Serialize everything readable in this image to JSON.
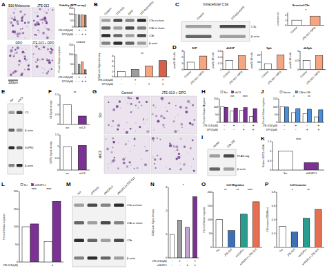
{
  "images": [
    {
      "panel": "A",
      "labels": [
        "B16-Melanoma",
        "JTE-013",
        "DPO",
        "JTE-013 + DPO"
      ],
      "scale_bar": "100μm"
    },
    {
      "panel": "G",
      "labels": [
        "Control",
        "JTE-013 + DPO"
      ],
      "row_labels": [
        "Scr",
        "shC3"
      ]
    }
  ],
  "blots": [
    {
      "panel": "B",
      "lanes": [
        "Control",
        "JTE-013",
        "DPO",
        "JTE-013+DPO"
      ],
      "bands": [
        "C3a-α chain",
        "C3b-α' chain",
        "C3b",
        "β-actin"
      ]
    },
    {
      "panel": "C",
      "title": "Intracellular C3a",
      "lanes": [
        "Control",
        "JTE-013+DPO"
      ],
      "bands": [
        "C3a",
        "β-actin"
      ]
    },
    {
      "panel": "E",
      "lanes": [
        "Scr",
        "shC3"
      ],
      "bands": [
        "C3",
        "β-actin",
        "S1PR1",
        "β-actin"
      ]
    },
    {
      "panel": "I",
      "lanes": [
        "Vector",
        "C3b OE"
      ],
      "bands": [
        "FLAG-tag",
        "β-actin"
      ]
    },
    {
      "panel": "M",
      "lanes": [
        "Scr",
        "JTE-013",
        "shSGPL1",
        "shSGPL1+JTE-013"
      ],
      "bands": [
        "C3a-α chain",
        "C3b-α' chain",
        "C3b",
        "β-actin"
      ]
    }
  ],
  "chart_data": [
    {
      "type": "bar",
      "title": "Viability (MTT assay)",
      "values": [
        100,
        97,
        98,
        95
      ],
      "colors": [
        "#ffffff",
        "#9e9e9e",
        "#f4a582",
        "#d6604d"
      ],
      "ylim": [
        0,
        150
      ],
      "yticks": [
        0,
        50,
        100,
        150
      ],
      "conditions": [
        {
          "label": "JTE-013(1μM)",
          "signs": [
            "-",
            "+",
            "-",
            "+"
          ]
        },
        {
          "label": "DPO(5μM)",
          "signs": [
            "-",
            "-",
            "+",
            "+"
          ]
        }
      ]
    },
    {
      "type": "bar",
      "y_label": "Percent Relative migration",
      "values": [
        100,
        50,
        62,
        22
      ],
      "colors": [
        "#ffffff",
        "#9e9e9e",
        "#f4a582",
        "#d6604d"
      ],
      "ylim": [
        0,
        150
      ],
      "yticks": [
        0,
        50,
        100,
        150
      ],
      "annotations": [
        "****",
        "****"
      ],
      "conditions": [
        {
          "label": "JTE-013(1μM)",
          "signs": [
            "-",
            "+",
            "-",
            "+"
          ]
        },
        {
          "label": "DPO(5μM)",
          "signs": [
            "-",
            "-",
            "+",
            "+"
          ]
        }
      ]
    },
    {
      "type": "bar",
      "y_label": "C3b/β-actin Signal intensity",
      "values": [
        1,
        1.4,
        2.1,
        3.1
      ],
      "colors": [
        "#ffffff",
        "#9e9e9e",
        "#f4a582",
        "#d6604d"
      ],
      "ylim": [
        0,
        4
      ],
      "yticks": [
        0,
        1,
        2,
        3,
        4
      ],
      "annotations": [
        "**"
      ],
      "conditions": [
        {
          "label": "JTE-013(1μM)",
          "signs": [
            "-",
            "+",
            "-",
            "+"
          ]
        },
        {
          "label": "DPO(5μM)",
          "signs": [
            "-",
            "-",
            "+",
            "+"
          ]
        }
      ]
    },
    {
      "type": "bar",
      "title": "Secreted C3a",
      "y_label": "Luminescence",
      "categories": [
        "Control",
        "JTE-013 +DPO"
      ],
      "values": [
        1,
        1.8
      ],
      "colors": [
        "#ffffff",
        "#f4a582"
      ],
      "ylim": [
        0,
        2.5
      ],
      "yticks": [
        0,
        1,
        2
      ],
      "annotations": [
        "*"
      ]
    },
    {
      "type": "bar",
      "panel": "D",
      "title": "S1P",
      "y_label": "pmol/1×10⁶ cells",
      "categories": [
        "Control",
        "JTE-013 +DPO"
      ],
      "values": [
        1.2,
        2.2
      ],
      "colors": [
        "#ffffff",
        "#f4a582"
      ],
      "ylim": [
        0,
        3
      ],
      "yticks": [
        0,
        1,
        2,
        3
      ]
    },
    {
      "type": "bar",
      "title": "dhS1P",
      "y_label": "pmol/1×10⁶ cells",
      "categories": [
        "Control",
        "JTE-013 +DPO"
      ],
      "values": [
        0.3,
        0.45
      ],
      "colors": [
        "#ffffff",
        "#f4a582"
      ],
      "ylim": [
        0,
        0.6
      ],
      "yticks": [
        0,
        0.2,
        0.4,
        0.6
      ]
    },
    {
      "type": "bar",
      "title": "Sph",
      "y_label": "pmol/1×10⁶ cells",
      "categories": [
        "Control",
        "JTE-013 +DPO"
      ],
      "values": [
        8,
        20
      ],
      "colors": [
        "#ffffff",
        "#f4a582"
      ],
      "ylim": [
        0,
        25
      ],
      "yticks": [
        0,
        10,
        20
      ]
    },
    {
      "type": "bar",
      "title": "dhSph",
      "y_label": "pmol/1×10⁶ cells",
      "categories": [
        "Control",
        "JTE-013 +DPO"
      ],
      "values": [
        0.5,
        0.75
      ],
      "colors": [
        "#ffffff",
        "#f4a582"
      ],
      "ylim": [
        0,
        1
      ],
      "yticks": [
        0,
        0.5,
        1
      ]
    },
    {
      "type": "bar",
      "panel": "F",
      "y_label": "C3 Signal intensity",
      "categories": [
        "scr",
        "shC3"
      ],
      "values": [
        1,
        0.42
      ],
      "colors": [
        "#ffffff",
        "#7b3294"
      ],
      "ylim": [
        0,
        1.5
      ],
      "yticks": [
        0,
        0.5,
        1,
        1.5
      ],
      "annotations": [
        "**"
      ]
    },
    {
      "type": "bar",
      "y_label": "S1PR1 Signal intensity",
      "categories": [
        "scr",
        "shC3"
      ],
      "values": [
        1,
        1.05
      ],
      "colors": [
        "#ffffff",
        "#7b3294"
      ],
      "ylim": [
        0,
        1.5
      ],
      "yticks": [
        0,
        0.5,
        1,
        1.5
      ]
    },
    {
      "type": "bar",
      "panel": "H",
      "y_label": "Percent Relative Migration",
      "legend": "top",
      "ylim": [
        0,
        150
      ],
      "yticks": [
        0,
        50,
        100,
        150
      ],
      "annotations": [
        "***",
        "****"
      ],
      "series": [
        {
          "name": "Scr",
          "color": "#ffffff",
          "values": [
            100,
            72,
            78,
            38
          ]
        },
        {
          "name": "shC3",
          "color": "#7b3294",
          "values": [
            96,
            92,
            94,
            88
          ]
        }
      ],
      "conditions": [
        {
          "label": "JTE-013(1μM)",
          "signs": [
            "-",
            "+",
            "-",
            "+"
          ]
        },
        {
          "label": "DPO(5μM)",
          "signs": [
            "-",
            "-",
            "+",
            "+"
          ]
        }
      ]
    },
    {
      "type": "bar",
      "panel": "J",
      "y_label": "Percent Relative migration",
      "legend": "top",
      "ylim": [
        0,
        150
      ],
      "yticks": [
        0,
        50,
        100,
        150
      ],
      "annotations": [
        "*",
        "**"
      ],
      "series": [
        {
          "name": "Vector",
          "color": "#ffffff",
          "values": [
            100,
            62,
            55,
            35
          ]
        },
        {
          "name": "C3b'α' OE",
          "color": "#4a90d9",
          "values": [
            98,
            88,
            84,
            80
          ]
        }
      ],
      "conditions": [
        {
          "label": "JTE-013(1μM)",
          "signs": [
            "-",
            "+",
            "-",
            "+"
          ]
        },
        {
          "label": "DPO(5μM)",
          "signs": [
            "-",
            "-",
            "+",
            "+"
          ]
        }
      ]
    },
    {
      "type": "bar",
      "panel": "K",
      "y_label": "Relative SGPL1 mRNA",
      "categories": [
        "Scr",
        "shSGPL1"
      ],
      "values": [
        1,
        0.4
      ],
      "colors": [
        "#ffffff",
        "#7b3294"
      ],
      "ylim": [
        0,
        1.5
      ],
      "yticks": [
        0,
        0.5,
        1,
        1.5
      ],
      "annotations": [
        "****"
      ]
    },
    {
      "type": "bar",
      "panel": "L",
      "y_label": "Percent Relative migration",
      "legend": "top",
      "ylim": [
        0,
        200
      ],
      "yticks": [
        0,
        50,
        100,
        150,
        200
      ],
      "annotations": [
        "****",
        "****"
      ],
      "series": [
        {
          "name": "Scr",
          "color": "#ffffff",
          "values": [
            100,
            58
          ]
        },
        {
          "name": "shSGPL1",
          "color": "#7b3294",
          "values": [
            108,
            172
          ]
        }
      ],
      "conditions": [
        {
          "label": "JTE-013(1μM)",
          "signs": [
            "-",
            "+"
          ]
        }
      ]
    },
    {
      "type": "bar",
      "panel": "N",
      "y_label": "C3b/β-actin Signal intensity",
      "values": [
        1,
        1.6,
        1.3,
        2.6
      ],
      "colors": [
        "#ffffff",
        "#9e9e9e",
        "#c2a5cf",
        "#7b3294"
      ],
      "ylim": [
        0,
        3
      ],
      "yticks": [
        0,
        1,
        2,
        3
      ],
      "annotations": [
        "*"
      ],
      "conditions": [
        {
          "label": "JTE-013(1μM)",
          "signs": [
            "-",
            "+",
            "-",
            "+"
          ]
        },
        {
          "label": "shSGPL1",
          "signs": [
            "-",
            "-",
            "+",
            "+"
          ]
        }
      ]
    },
    {
      "type": "bar",
      "panel": "O",
      "title": "Cell Migration",
      "y_label": "Percent Relative migration",
      "categories": [
        "Scr",
        "JTE-013",
        "shSGPL1",
        "shSGPL1+JTE-013"
      ],
      "values": [
        100,
        60,
        120,
        165
      ],
      "colors": [
        "#ffffff",
        "#3b6fb6",
        "#2a9d8f",
        "#e76f51"
      ],
      "ylim": [
        0,
        200
      ],
      "yticks": [
        0,
        50,
        100,
        150,
        200
      ],
      "annotations": [
        "**",
        "**",
        "****"
      ]
    },
    {
      "type": "bar",
      "panel": "P",
      "title": "Cell Invasion",
      "y_label": "Cell invasion (OD590nm)",
      "categories": [
        "Scr",
        "JTE-013",
        "shSGPL1",
        "shSGPL1+JTE-013"
      ],
      "values": [
        0.3,
        0.22,
        0.42,
        0.55
      ],
      "colors": [
        "#ffffff",
        "#3b6fb6",
        "#2a9d8f",
        "#e76f51"
      ],
      "ylim": [
        0,
        0.8
      ],
      "yticks": [
        0,
        0.2,
        0.4,
        0.6,
        0.8
      ],
      "annotations": [
        "*",
        "**"
      ]
    }
  ]
}
